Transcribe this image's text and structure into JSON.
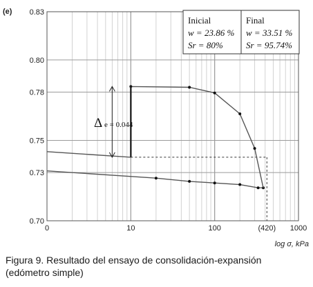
{
  "chart_data": {
    "type": "line",
    "panel_label": "(e)",
    "xscale": "log",
    "xlim": [
      1,
      1000
    ],
    "ylim": [
      0.7,
      0.83
    ],
    "x_ticks": [
      {
        "value": 1,
        "label": "0"
      },
      {
        "value": 10,
        "label": "10"
      },
      {
        "value": 100,
        "label": "100"
      },
      {
        "value": 420,
        "label": "(420)"
      },
      {
        "value": 1000,
        "label": "1000"
      }
    ],
    "y_ticks": [
      {
        "value": 0.7,
        "label": "0.70"
      },
      {
        "value": 0.73,
        "label": "0.73"
      },
      {
        "value": 0.75,
        "label": "0.75"
      },
      {
        "value": 0.78,
        "label": "0.78"
      },
      {
        "value": 0.8,
        "label": "0.80"
      },
      {
        "value": 0.83,
        "label": "0.83"
      }
    ],
    "xlabel": "log σ, kPa",
    "grid": true,
    "series": [
      {
        "points": [
          [
            1,
            0.731
          ],
          [
            20,
            0.7265
          ],
          [
            50,
            0.7245
          ],
          [
            100,
            0.7235
          ],
          [
            200,
            0.7225
          ],
          [
            330,
            0.7205
          ],
          [
            380,
            0.7205
          ]
        ]
      },
      {
        "points": [
          [
            1,
            0.743
          ],
          [
            10,
            0.7395
          ],
          [
            10,
            0.7835
          ],
          [
            50,
            0.783
          ],
          [
            100,
            0.7795
          ],
          [
            200,
            0.7665
          ],
          [
            300,
            0.745
          ],
          [
            380,
            0.7205
          ]
        ],
        "marked": [
          [
            10,
            0.7835
          ],
          [
            50,
            0.783
          ],
          [
            100,
            0.7795
          ],
          [
            200,
            0.7665
          ],
          [
            300,
            0.745
          ]
        ]
      }
    ],
    "reference_lines": {
      "y": 0.7395,
      "x": 420
    },
    "annotation": {
      "symbol": "Δ",
      "text": "e = 0.044",
      "x": 10,
      "y_from": 0.7395,
      "y_to": 0.7835
    },
    "table": {
      "initial": {
        "title": "Inicial",
        "w": "w = 23.86 %",
        "sr": "Sr = 80%"
      },
      "final": {
        "title": "Final",
        "w": "w = 33.51 %",
        "sr": "Sr = 95.74%"
      }
    }
  },
  "caption": {
    "line1": "Figura 9. Resultado del ensayo de consolidación-expansión",
    "line2": "(edómetro simple)"
  }
}
